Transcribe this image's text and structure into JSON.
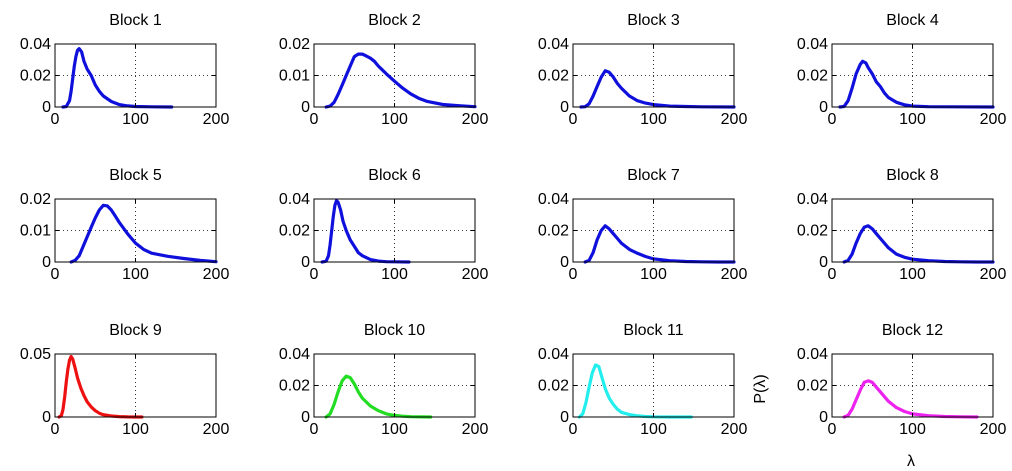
{
  "figure": {
    "ylabel": "P(λ)",
    "xlabel": "λ"
  },
  "chart_data": [
    {
      "type": "line",
      "title": "Block 1",
      "xlim": [
        0,
        200
      ],
      "ylim": [
        0,
        0.04
      ],
      "xticks": [
        0,
        100,
        200
      ],
      "yticks": [
        0,
        0.02,
        0.04
      ],
      "ytick_labels": [
        "0",
        "0.02",
        "0.04"
      ],
      "grid": "dotted",
      "color": "#1010dd",
      "series": [
        {
          "x": [
            10,
            14,
            18,
            20,
            22,
            24,
            26,
            28,
            30,
            33,
            36,
            40,
            45,
            50,
            55,
            60,
            70,
            80,
            90,
            100,
            120,
            145
          ],
          "y": [
            0,
            0.0003,
            0.004,
            0.01,
            0.018,
            0.026,
            0.032,
            0.036,
            0.037,
            0.035,
            0.029,
            0.024,
            0.02,
            0.014,
            0.01,
            0.007,
            0.0035,
            0.0015,
            0.0007,
            0.0003,
            0.0001,
            0
          ]
        }
      ]
    },
    {
      "type": "line",
      "title": "Block 2",
      "xlim": [
        0,
        200
      ],
      "ylim": [
        0,
        0.02
      ],
      "xticks": [
        0,
        100,
        200
      ],
      "yticks": [
        0,
        0.01,
        0.02
      ],
      "ytick_labels": [
        "0",
        "0.01",
        "0.02"
      ],
      "grid": "dotted",
      "color": "#1010dd",
      "series": [
        {
          "x": [
            15,
            20,
            25,
            30,
            35,
            40,
            45,
            50,
            55,
            60,
            65,
            70,
            75,
            80,
            90,
            100,
            110,
            120,
            130,
            140,
            160,
            180,
            200
          ],
          "y": [
            0,
            0.0003,
            0.0015,
            0.004,
            0.007,
            0.01,
            0.013,
            0.016,
            0.0168,
            0.0168,
            0.0162,
            0.0155,
            0.0145,
            0.013,
            0.0105,
            0.0082,
            0.006,
            0.0042,
            0.0028,
            0.0018,
            0.0008,
            0.0004,
            0.0001
          ]
        }
      ]
    },
    {
      "type": "line",
      "title": "Block 3",
      "xlim": [
        0,
        200
      ],
      "ylim": [
        0,
        0.04
      ],
      "xticks": [
        0,
        100,
        200
      ],
      "yticks": [
        0,
        0.02,
        0.04
      ],
      "ytick_labels": [
        "0",
        "0.02",
        "0.04"
      ],
      "grid": "dotted",
      "color": "#1010dd",
      "series": [
        {
          "x": [
            10,
            15,
            20,
            25,
            30,
            35,
            40,
            45,
            50,
            55,
            60,
            70,
            80,
            90,
            100,
            120,
            140,
            160,
            200
          ],
          "y": [
            0,
            0.0002,
            0.002,
            0.007,
            0.013,
            0.019,
            0.023,
            0.022,
            0.019,
            0.015,
            0.012,
            0.007,
            0.004,
            0.0025,
            0.0015,
            0.0006,
            0.0003,
            0.0001,
            0
          ]
        }
      ]
    },
    {
      "type": "line",
      "title": "Block 4",
      "xlim": [
        0,
        200
      ],
      "ylim": [
        0,
        0.04
      ],
      "xticks": [
        0,
        100,
        200
      ],
      "yticks": [
        0,
        0.02,
        0.04
      ],
      "ytick_labels": [
        "0",
        "0.02",
        "0.04"
      ],
      "grid": "dotted",
      "color": "#1010dd",
      "series": [
        {
          "x": [
            10,
            15,
            20,
            25,
            30,
            35,
            38,
            42,
            45,
            50,
            55,
            60,
            65,
            70,
            80,
            90,
            100,
            120,
            150,
            200
          ],
          "y": [
            0,
            0.0004,
            0.004,
            0.012,
            0.021,
            0.027,
            0.029,
            0.028,
            0.025,
            0.021,
            0.016,
            0.013,
            0.009,
            0.006,
            0.003,
            0.0014,
            0.0006,
            0.0002,
            0.0001,
            0
          ]
        }
      ]
    },
    {
      "type": "line",
      "title": "Block 5",
      "xlim": [
        0,
        200
      ],
      "ylim": [
        0,
        0.02
      ],
      "xticks": [
        0,
        100,
        200
      ],
      "yticks": [
        0,
        0.01,
        0.02
      ],
      "ytick_labels": [
        "0",
        "0.01",
        "0.02"
      ],
      "grid": "dotted",
      "color": "#1010dd",
      "series": [
        {
          "x": [
            20,
            25,
            30,
            35,
            40,
            45,
            50,
            55,
            60,
            65,
            70,
            75,
            80,
            90,
            100,
            110,
            120,
            140,
            160,
            180,
            200
          ],
          "y": [
            0,
            0.0005,
            0.002,
            0.005,
            0.008,
            0.011,
            0.014,
            0.0165,
            0.018,
            0.0178,
            0.0165,
            0.0145,
            0.0125,
            0.009,
            0.006,
            0.004,
            0.0028,
            0.0018,
            0.0011,
            0.0005,
            0.0001
          ]
        }
      ]
    },
    {
      "type": "line",
      "title": "Block 6",
      "xlim": [
        0,
        200
      ],
      "ylim": [
        0,
        0.04
      ],
      "xticks": [
        0,
        100,
        200
      ],
      "yticks": [
        0,
        0.02,
        0.04
      ],
      "ytick_labels": [
        "0",
        "0.02",
        "0.04"
      ],
      "grid": "dotted",
      "color": "#1010dd",
      "series": [
        {
          "x": [
            10,
            15,
            18,
            20,
            22,
            24,
            26,
            28,
            30,
            33,
            36,
            40,
            45,
            50,
            55,
            60,
            70,
            80,
            90,
            100,
            118
          ],
          "y": [
            0,
            0.0005,
            0.004,
            0.011,
            0.02,
            0.029,
            0.036,
            0.039,
            0.038,
            0.033,
            0.026,
            0.02,
            0.014,
            0.01,
            0.006,
            0.004,
            0.0015,
            0.0006,
            0.0002,
            0.0001,
            0
          ]
        }
      ]
    },
    {
      "type": "line",
      "title": "Block 7",
      "xlim": [
        0,
        200
      ],
      "ylim": [
        0,
        0.04
      ],
      "xticks": [
        0,
        100,
        200
      ],
      "yticks": [
        0,
        0.02,
        0.04
      ],
      "ytick_labels": [
        "0",
        "0.02",
        "0.04"
      ],
      "grid": "dotted",
      "color": "#1010dd",
      "series": [
        {
          "x": [
            15,
            20,
            25,
            30,
            35,
            40,
            45,
            50,
            55,
            60,
            70,
            80,
            90,
            100,
            120,
            140,
            160,
            180,
            200
          ],
          "y": [
            0,
            0.001,
            0.006,
            0.014,
            0.02,
            0.023,
            0.021,
            0.018,
            0.015,
            0.012,
            0.008,
            0.0055,
            0.0035,
            0.002,
            0.0008,
            0.0003,
            0.0001,
            0,
            0
          ]
        }
      ]
    },
    {
      "type": "line",
      "title": "Block 8",
      "xlim": [
        0,
        200
      ],
      "ylim": [
        0,
        0.04
      ],
      "xticks": [
        0,
        100,
        200
      ],
      "yticks": [
        0,
        0.02,
        0.04
      ],
      "ytick_labels": [
        "0",
        "0.02",
        "0.04"
      ],
      "grid": "dotted",
      "color": "#1010dd",
      "series": [
        {
          "x": [
            15,
            20,
            25,
            30,
            35,
            40,
            45,
            50,
            55,
            60,
            70,
            80,
            90,
            100,
            120,
            140,
            160,
            180,
            200
          ],
          "y": [
            0,
            0.001,
            0.005,
            0.012,
            0.018,
            0.022,
            0.023,
            0.021,
            0.018,
            0.015,
            0.009,
            0.005,
            0.003,
            0.0018,
            0.0008,
            0.0003,
            0.0001,
            0,
            0
          ]
        }
      ]
    },
    {
      "type": "line",
      "title": "Block 9",
      "xlim": [
        0,
        200
      ],
      "ylim": [
        0,
        0.05
      ],
      "xticks": [
        0,
        100,
        200
      ],
      "yticks": [
        0,
        0.05
      ],
      "ytick_labels": [
        "0",
        "0.05"
      ],
      "grid": "dotted",
      "color": "#ee1111",
      "series": [
        {
          "x": [
            5,
            8,
            10,
            12,
            14,
            16,
            18,
            20,
            22,
            25,
            28,
            32,
            36,
            40,
            45,
            50,
            55,
            60,
            70,
            80,
            90,
            100,
            108
          ],
          "y": [
            0,
            0.001,
            0.006,
            0.016,
            0.028,
            0.038,
            0.045,
            0.048,
            0.046,
            0.039,
            0.031,
            0.023,
            0.017,
            0.012,
            0.008,
            0.005,
            0.003,
            0.0018,
            0.0008,
            0.0003,
            0.0001,
            0,
            0
          ]
        }
      ]
    },
    {
      "type": "line",
      "title": "Block 10",
      "xlim": [
        0,
        200
      ],
      "ylim": [
        0,
        0.04
      ],
      "xticks": [
        0,
        100,
        200
      ],
      "yticks": [
        0,
        0.02,
        0.04
      ],
      "ytick_labels": [
        "0",
        "0.02",
        "0.04"
      ],
      "grid": "dotted",
      "color": "#22dd22",
      "series": [
        {
          "x": [
            15,
            20,
            25,
            30,
            35,
            40,
            45,
            50,
            55,
            60,
            70,
            80,
            90,
            100,
            110,
            120,
            145
          ],
          "y": [
            0,
            0.002,
            0.008,
            0.016,
            0.023,
            0.026,
            0.025,
            0.021,
            0.016,
            0.012,
            0.007,
            0.004,
            0.002,
            0.001,
            0.0005,
            0.0002,
            0
          ]
        }
      ]
    },
    {
      "type": "line",
      "title": "Block 11",
      "xlim": [
        0,
        200
      ],
      "ylim": [
        0,
        0.04
      ],
      "xticks": [
        0,
        100,
        200
      ],
      "yticks": [
        0,
        0.02,
        0.04
      ],
      "ytick_labels": [
        "0",
        "0.02",
        "0.04"
      ],
      "grid": "dotted",
      "color": "#22eeee",
      "series": [
        {
          "x": [
            8,
            12,
            16,
            20,
            24,
            28,
            32,
            36,
            40,
            45,
            50,
            55,
            60,
            70,
            80,
            90,
            100,
            120,
            147
          ],
          "y": [
            0,
            0.002,
            0.009,
            0.019,
            0.028,
            0.033,
            0.032,
            0.025,
            0.018,
            0.012,
            0.008,
            0.005,
            0.003,
            0.0015,
            0.0007,
            0.0003,
            0.0001,
            0,
            0
          ]
        }
      ]
    },
    {
      "type": "line",
      "title": "Block 12",
      "xlim": [
        0,
        200
      ],
      "ylim": [
        0,
        0.04
      ],
      "xticks": [
        0,
        100,
        200
      ],
      "yticks": [
        0,
        0.02,
        0.04
      ],
      "ytick_labels": [
        "0",
        "0.02",
        "0.04"
      ],
      "grid": "dotted",
      "color": "#ee22ee",
      "series": [
        {
          "x": [
            15,
            20,
            25,
            30,
            35,
            40,
            45,
            50,
            55,
            60,
            70,
            80,
            90,
            100,
            120,
            140,
            160,
            180
          ],
          "y": [
            0,
            0.001,
            0.005,
            0.011,
            0.017,
            0.022,
            0.023,
            0.022,
            0.019,
            0.016,
            0.01,
            0.006,
            0.0035,
            0.002,
            0.0008,
            0.0003,
            0.0001,
            0
          ]
        }
      ]
    }
  ]
}
